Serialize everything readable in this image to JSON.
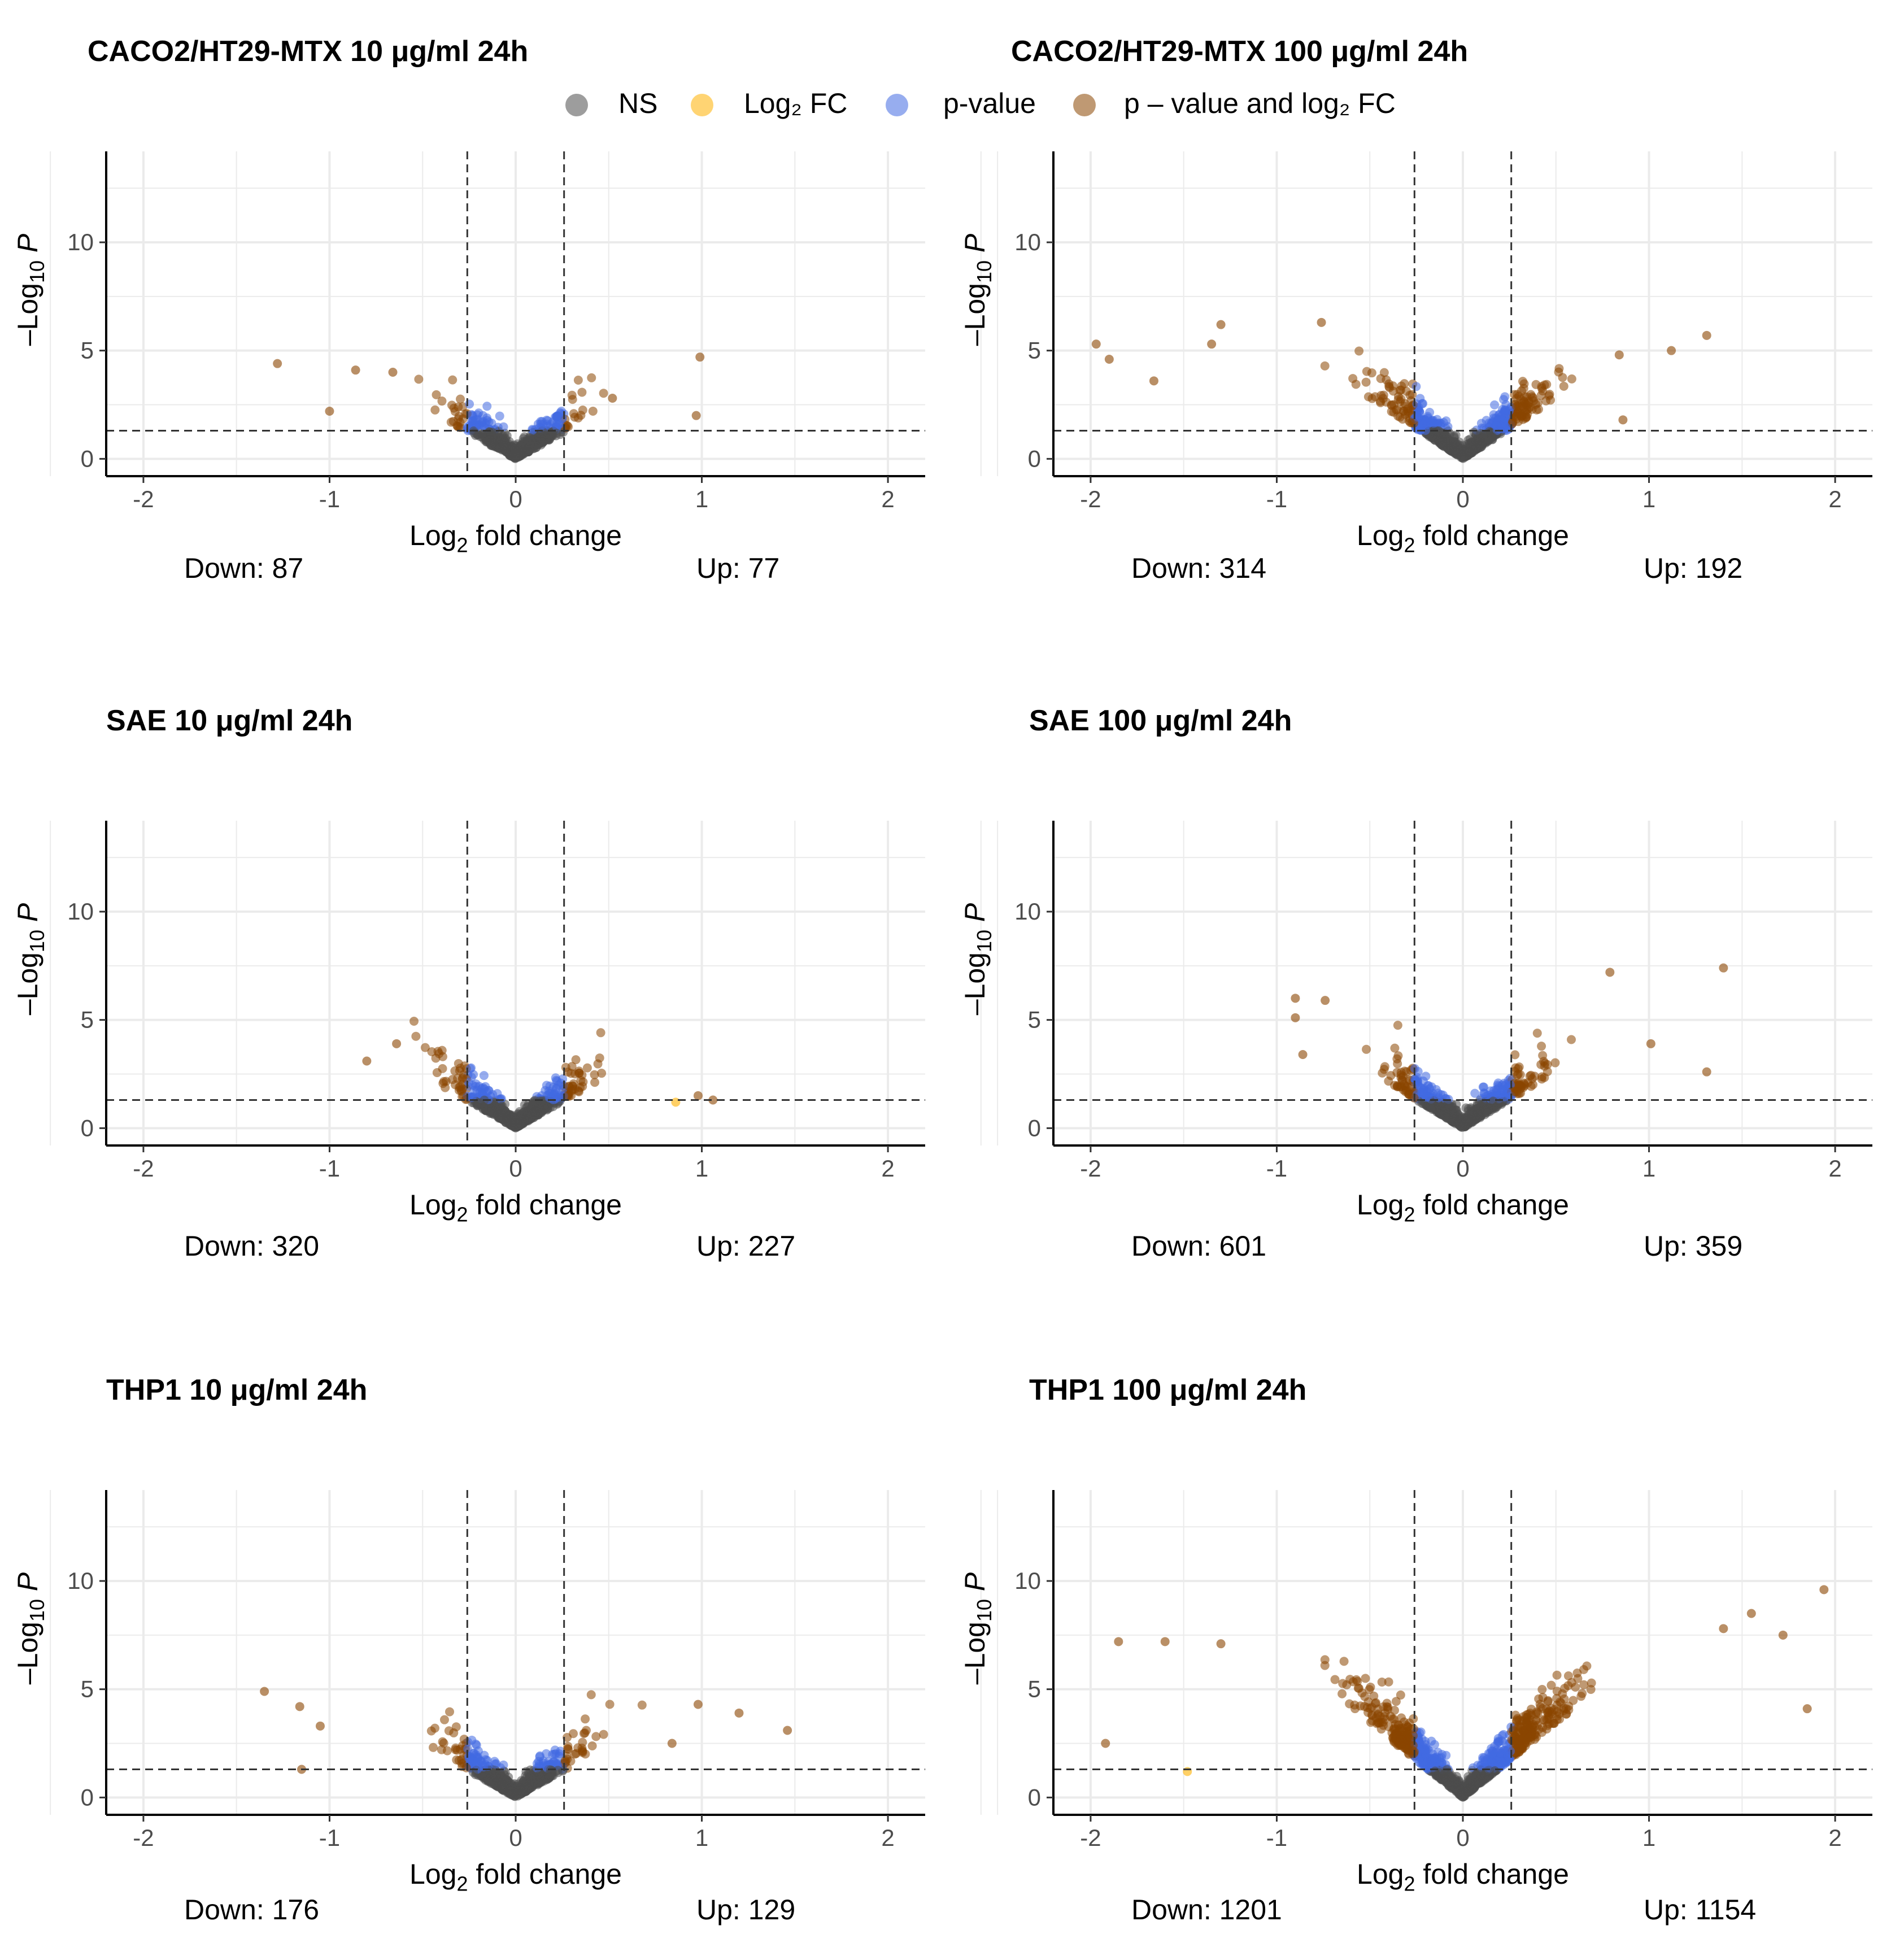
{
  "legend": {
    "items": [
      {
        "label": "NS",
        "color": "#4d4d4d"
      },
      {
        "label": "Log₂ FC",
        "color": "#ffb000"
      },
      {
        "label": "p-value",
        "color": "#4169e1"
      },
      {
        "label": "p – value and log₂ FC",
        "color": "#8b4500"
      }
    ]
  },
  "axis": {
    "xlabel": "Log₂ fold change",
    "ylabel": "–Log₁₀ P",
    "xlim": [
      -2.2,
      2.2
    ],
    "ylim": [
      -0.8,
      14.2
    ],
    "xticks": [
      -2,
      -1,
      0,
      1,
      2
    ],
    "yticks": [
      0,
      5,
      10
    ],
    "fc_cutoff": 0.26,
    "p_cutoff_neglog10": 1.3
  },
  "chart_data": [
    {
      "type": "scatter",
      "title": "CACO2/HT29-MTX 10 μg/ml 24h",
      "down_label": "Down: 87",
      "up_label": "Up: 77",
      "extreme_points": [
        [
          -1.28,
          4.4
        ],
        [
          -1.0,
          2.2
        ],
        [
          -0.86,
          4.1
        ],
        [
          -0.66,
          4.0
        ],
        [
          0.99,
          4.7
        ],
        [
          0.97,
          2.0
        ],
        [
          0.52,
          2.8
        ]
      ]
    },
    {
      "type": "scatter",
      "title": "CACO2/HT29-MTX 100 μg/ml 24h",
      "down_label": "Down: 314",
      "up_label": "Up: 192",
      "extreme_points": [
        [
          -1.97,
          5.3
        ],
        [
          -1.9,
          4.6
        ],
        [
          -1.66,
          3.6
        ],
        [
          -1.3,
          6.2
        ],
        [
          -1.35,
          5.3
        ],
        [
          -0.76,
          6.3
        ],
        [
          1.31,
          5.7
        ],
        [
          1.12,
          5.0
        ],
        [
          0.84,
          4.8
        ],
        [
          0.86,
          1.8
        ]
      ]
    },
    {
      "type": "scatter",
      "title": "SAE 10 μg/ml 24h",
      "down_label": "Down: 320",
      "up_label": "Up: 227",
      "extreme_points": [
        [
          -0.8,
          3.1
        ],
        [
          -0.64,
          3.9
        ],
        [
          0.98,
          1.5
        ],
        [
          1.06,
          1.3
        ],
        [
          0.86,
          1.2
        ]
      ]
    },
    {
      "type": "scatter",
      "title": "SAE 100 μg/ml 24h",
      "down_label": "Down: 601",
      "up_label": "Up: 359",
      "extreme_points": [
        [
          -0.9,
          6.0
        ],
        [
          -0.9,
          5.1
        ],
        [
          -0.74,
          5.9
        ],
        [
          -0.86,
          3.4
        ],
        [
          1.4,
          7.4
        ],
        [
          1.31,
          2.6
        ],
        [
          1.01,
          3.9
        ],
        [
          0.79,
          7.2
        ]
      ]
    },
    {
      "type": "scatter",
      "title": "THP1 10 μg/ml 24h",
      "down_label": "Down: 176",
      "up_label": "Up: 129",
      "extreme_points": [
        [
          -1.35,
          4.9
        ],
        [
          -1.15,
          1.3
        ],
        [
          -1.16,
          4.2
        ],
        [
          -1.05,
          3.3
        ],
        [
          1.46,
          3.1
        ],
        [
          1.2,
          3.9
        ],
        [
          0.98,
          4.3
        ],
        [
          0.84,
          2.5
        ]
      ]
    },
    {
      "type": "scatter",
      "title": "THP1 100 μg/ml 24h",
      "down_label": "Down: 1201",
      "up_label": "Up: 1154",
      "extreme_points": [
        [
          -1.92,
          2.5
        ],
        [
          -1.85,
          7.2
        ],
        [
          -1.6,
          7.2
        ],
        [
          -1.48,
          1.2
        ],
        [
          -1.3,
          7.1
        ],
        [
          1.94,
          9.6
        ],
        [
          1.85,
          4.1
        ],
        [
          1.72,
          7.5
        ],
        [
          1.55,
          8.5
        ],
        [
          1.4,
          7.8
        ]
      ]
    }
  ]
}
